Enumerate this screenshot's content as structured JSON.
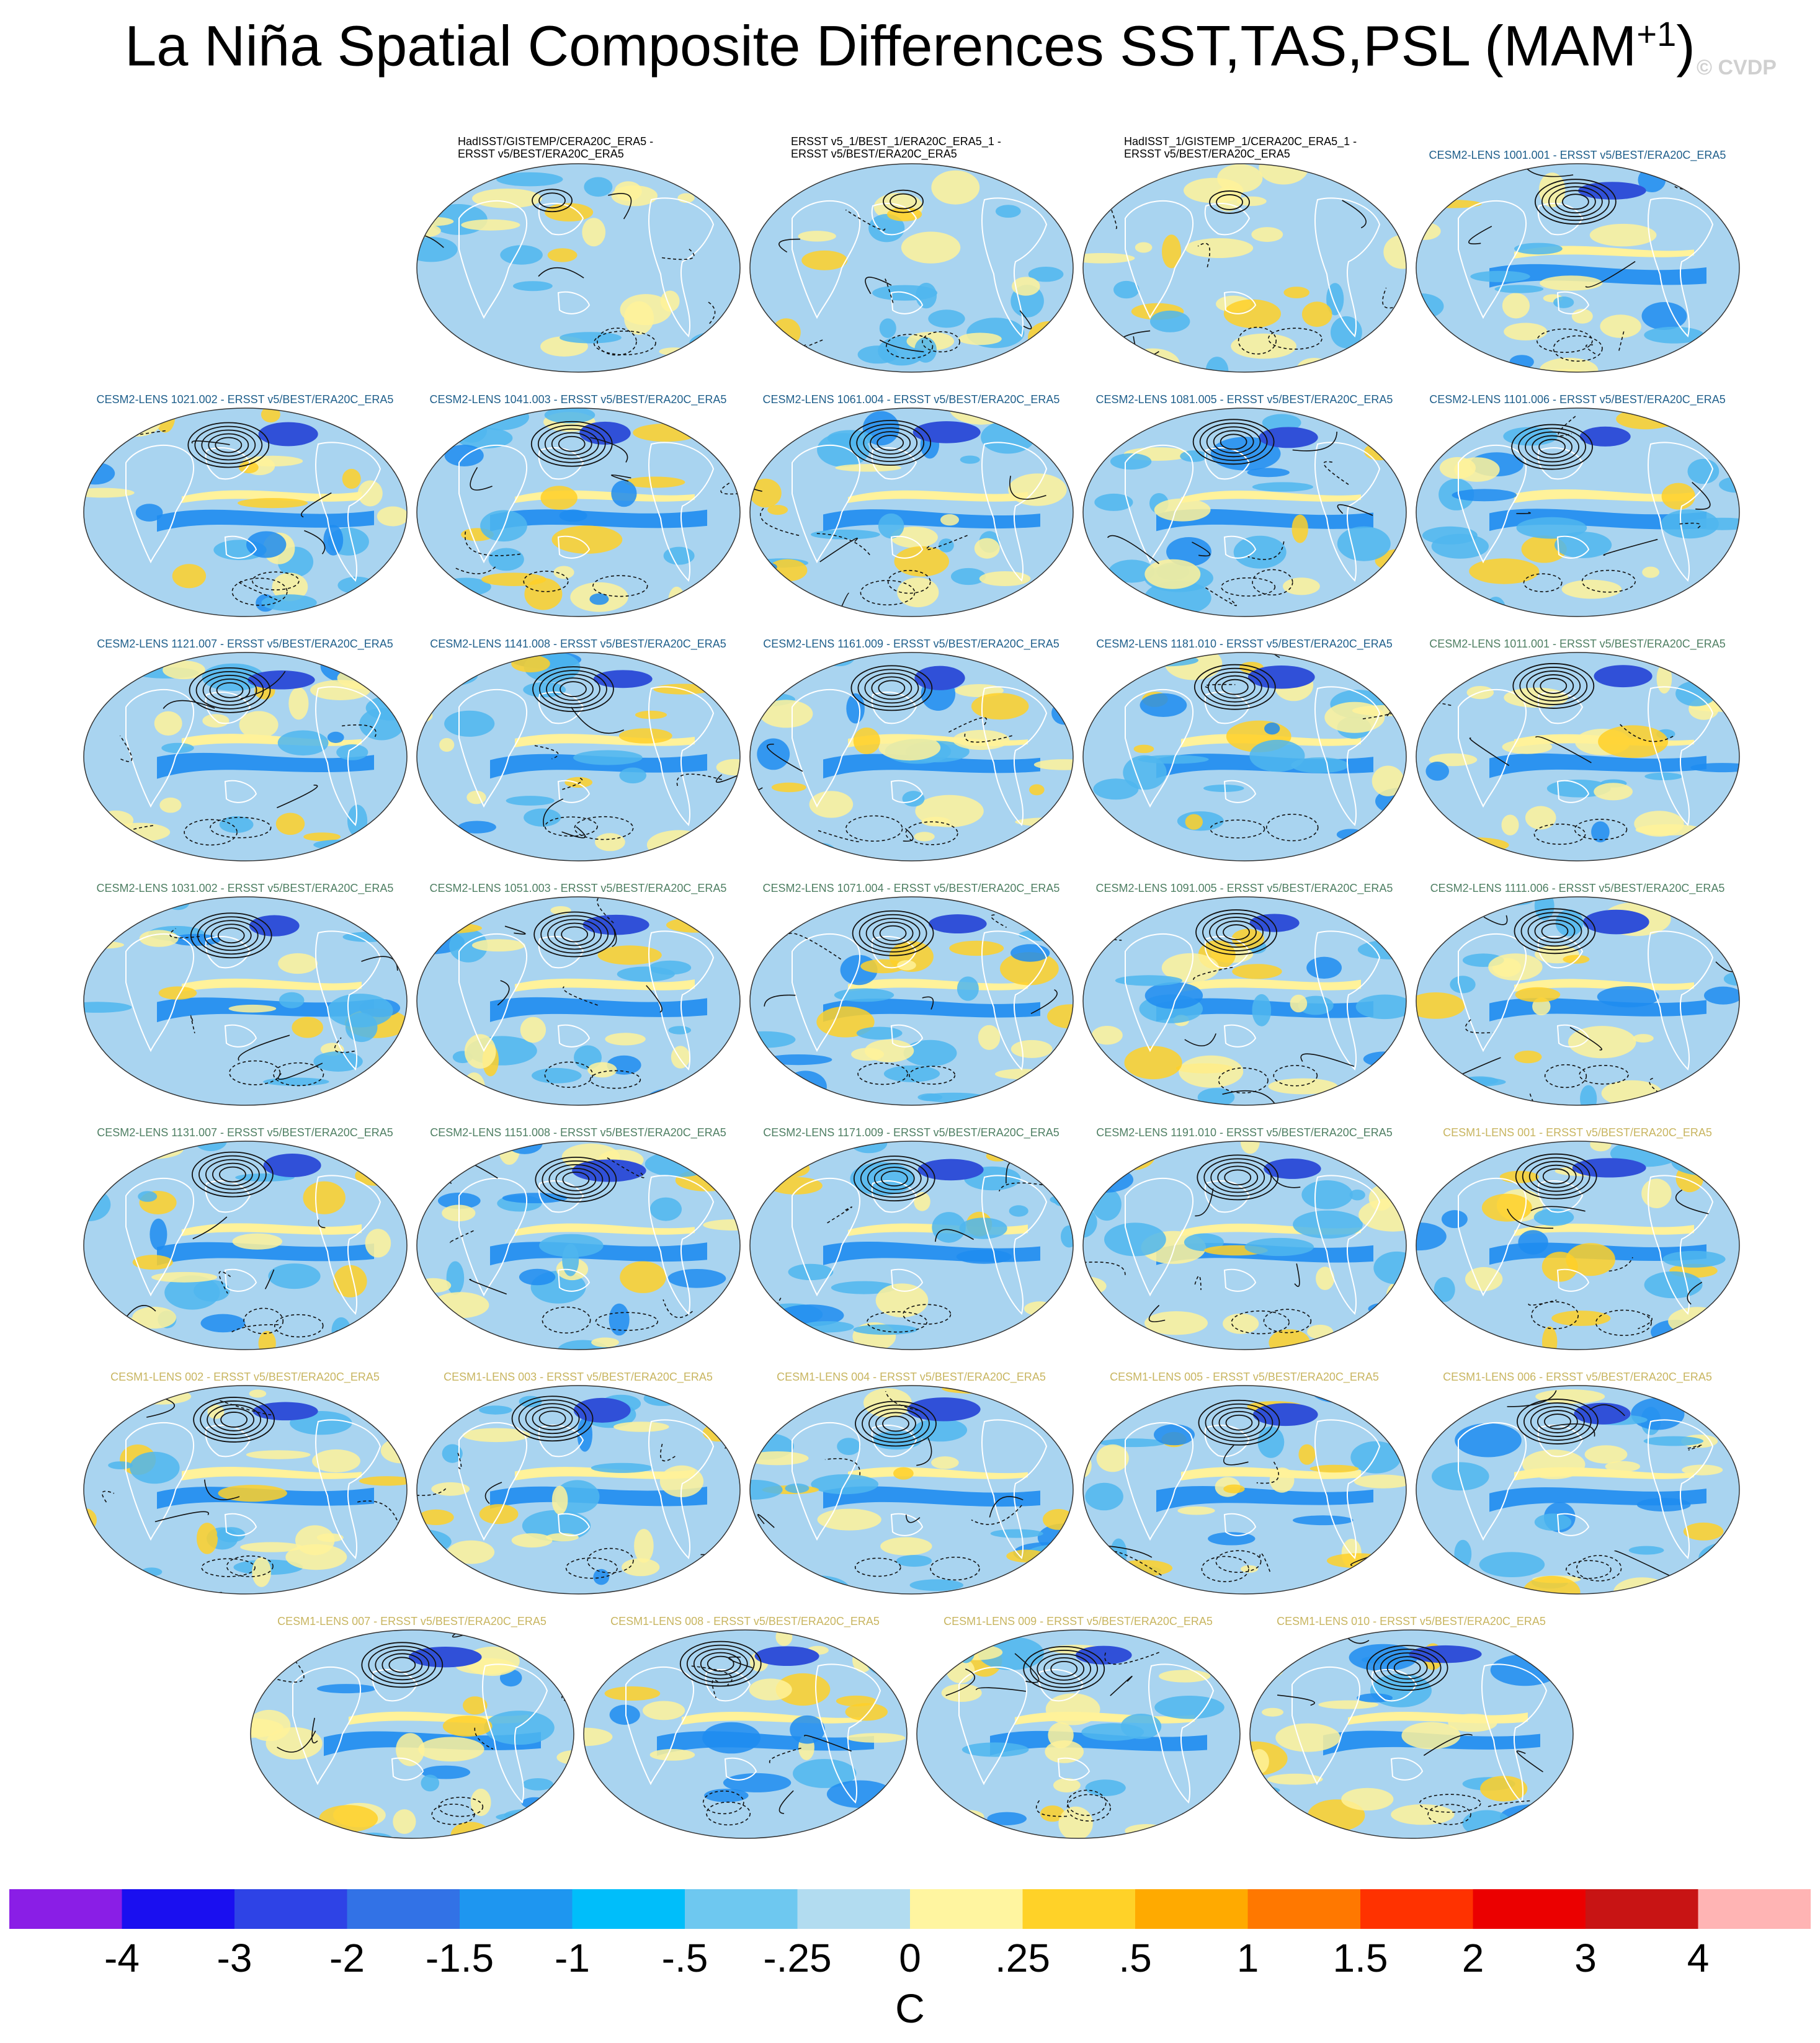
{
  "title": {
    "main": "La Niña Spatial Composite Differences SST,TAS,PSL (MAM",
    "superscript": "+1",
    "close": ")"
  },
  "watermark": "© CVDP",
  "label_colors": {
    "observations": "#000000",
    "cesm2_first": "#1f5f8b",
    "cesm2_second": "#4f7f63",
    "cesm1": "#c8b560"
  },
  "panels": [
    {
      "label": "HadISST/GISTEMP/CERA20C_ERA5 -\nERSST v5/BEST/ERA20C_ERA5",
      "group": "observations"
    },
    {
      "label": "ERSST v5_1/BEST_1/ERA20C_ERA5_1 -\nERSST v5/BEST/ERA20C_ERA5",
      "group": "observations"
    },
    {
      "label": "HadISST_1/GISTEMP_1/CERA20C_ERA5_1 -\nERSST v5/BEST/ERA20C_ERA5",
      "group": "observations"
    },
    {
      "label": "CESM2-LENS 1001.001 - ERSST v5/BEST/ERA20C_ERA5",
      "group": "cesm2_first"
    },
    {
      "label": "CESM2-LENS 1021.002 - ERSST v5/BEST/ERA20C_ERA5",
      "group": "cesm2_first"
    },
    {
      "label": "CESM2-LENS 1041.003 - ERSST v5/BEST/ERA20C_ERA5",
      "group": "cesm2_first"
    },
    {
      "label": "CESM2-LENS 1061.004 - ERSST v5/BEST/ERA20C_ERA5",
      "group": "cesm2_first"
    },
    {
      "label": "CESM2-LENS 1081.005 - ERSST v5/BEST/ERA20C_ERA5",
      "group": "cesm2_first"
    },
    {
      "label": "CESM2-LENS 1101.006 - ERSST v5/BEST/ERA20C_ERA5",
      "group": "cesm2_first"
    },
    {
      "label": "CESM2-LENS 1121.007 - ERSST v5/BEST/ERA20C_ERA5",
      "group": "cesm2_first"
    },
    {
      "label": "CESM2-LENS 1141.008 - ERSST v5/BEST/ERA20C_ERA5",
      "group": "cesm2_first"
    },
    {
      "label": "CESM2-LENS 1161.009 - ERSST v5/BEST/ERA20C_ERA5",
      "group": "cesm2_first"
    },
    {
      "label": "CESM2-LENS 1181.010 - ERSST v5/BEST/ERA20C_ERA5",
      "group": "cesm2_first"
    },
    {
      "label": "CESM2-LENS 1011.001 - ERSST v5/BEST/ERA20C_ERA5",
      "group": "cesm2_second"
    },
    {
      "label": "CESM2-LENS 1031.002 - ERSST v5/BEST/ERA20C_ERA5",
      "group": "cesm2_second"
    },
    {
      "label": "CESM2-LENS 1051.003 - ERSST v5/BEST/ERA20C_ERA5",
      "group": "cesm2_second"
    },
    {
      "label": "CESM2-LENS 1071.004 - ERSST v5/BEST/ERA20C_ERA5",
      "group": "cesm2_second"
    },
    {
      "label": "CESM2-LENS 1091.005 - ERSST v5/BEST/ERA20C_ERA5",
      "group": "cesm2_second"
    },
    {
      "label": "CESM2-LENS 1111.006 - ERSST v5/BEST/ERA20C_ERA5",
      "group": "cesm2_second"
    },
    {
      "label": "CESM2-LENS 1131.007 - ERSST v5/BEST/ERA20C_ERA5",
      "group": "cesm2_second"
    },
    {
      "label": "CESM2-LENS 1151.008 - ERSST v5/BEST/ERA20C_ERA5",
      "group": "cesm2_second"
    },
    {
      "label": "CESM2-LENS 1171.009 - ERSST v5/BEST/ERA20C_ERA5",
      "group": "cesm2_second"
    },
    {
      "label": "CESM2-LENS 1191.010 - ERSST v5/BEST/ERA20C_ERA5",
      "group": "cesm2_second"
    },
    {
      "label": "CESM1-LENS 001 - ERSST v5/BEST/ERA20C_ERA5",
      "group": "cesm1"
    },
    {
      "label": "CESM1-LENS 002 - ERSST v5/BEST/ERA20C_ERA5",
      "group": "cesm1"
    },
    {
      "label": "CESM1-LENS 003 - ERSST v5/BEST/ERA20C_ERA5",
      "group": "cesm1"
    },
    {
      "label": "CESM1-LENS 004 - ERSST v5/BEST/ERA20C_ERA5",
      "group": "cesm1"
    },
    {
      "label": "CESM1-LENS 005 - ERSST v5/BEST/ERA20C_ERA5",
      "group": "cesm1"
    },
    {
      "label": "CESM1-LENS 006 - ERSST v5/BEST/ERA20C_ERA5",
      "group": "cesm1"
    },
    {
      "label": "CESM1-LENS 007 - ERSST v5/BEST/ERA20C_ERA5",
      "group": "cesm1"
    },
    {
      "label": "CESM1-LENS 008 - ERSST v5/BEST/ERA20C_ERA5",
      "group": "cesm1"
    },
    {
      "label": "CESM1-LENS 009 - ERSST v5/BEST/ERA20C_ERA5",
      "group": "cesm1"
    },
    {
      "label": "CESM1-LENS 010 - ERSST v5/BEST/ERA20C_ERA5",
      "group": "cesm1"
    }
  ],
  "colorbar": {
    "colors": [
      "#8a1ee6",
      "#1a0ff0",
      "#2e43e6",
      "#3272e6",
      "#1e96f0",
      "#00befa",
      "#6ec8f0",
      "#b2dcf0",
      "#fff5a0",
      "#ffd228",
      "#ffaa00",
      "#ff7800",
      "#ff3200",
      "#eb0000",
      "#c81414",
      "#ffb4b4"
    ],
    "ticks": [
      "-4",
      "-3",
      "-2",
      "-1.5",
      "-1",
      "-.5",
      "-.25",
      "0",
      ".25",
      ".5",
      "1",
      "1.5",
      "2",
      "3",
      "4"
    ],
    "units": "C"
  },
  "map_style": {
    "ocean_base": "#a9d4f0",
    "cool_patch": "#4fb6ee",
    "strong_cool_patch": "#1e8cf0",
    "deep_cool_patch": "#3050d8",
    "warm_patch": "#fff29a",
    "warm_orange": "#ffd028",
    "contour": "#111111"
  }
}
